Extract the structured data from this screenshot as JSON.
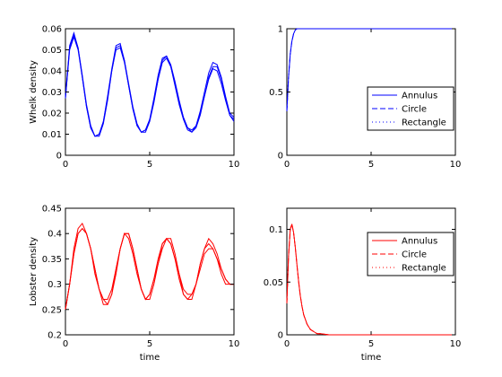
{
  "chart_data": [
    {
      "type": "line",
      "ylabel": "Whelk density",
      "xlabel": "",
      "xlim": [
        0,
        10
      ],
      "ylim": [
        0,
        0.06
      ],
      "xticks": [
        "0",
        "5",
        "10"
      ],
      "yticks": [
        "0",
        "0.01",
        "0.02",
        "0.03",
        "0.04",
        "0.05",
        "0.06"
      ],
      "color": "#0000ff",
      "legend": false,
      "series": [
        {
          "x": [
            0,
            0.25,
            0.5,
            0.75,
            1.0,
            1.25,
            1.5,
            1.75,
            2.0,
            2.25,
            2.5,
            2.75,
            3.0,
            3.25,
            3.5,
            3.75,
            4.0,
            4.25,
            4.5,
            4.75,
            5.0,
            5.25,
            5.5,
            5.75,
            6.0,
            6.25,
            6.5,
            6.75,
            7.0,
            7.25,
            7.5,
            7.75,
            8.0,
            8.25,
            8.5,
            8.75,
            9.0,
            9.25,
            9.5,
            9.75,
            10.0
          ],
          "y": [
            0.027,
            0.05,
            0.056,
            0.05,
            0.037,
            0.023,
            0.013,
            0.009,
            0.01,
            0.016,
            0.027,
            0.04,
            0.05,
            0.051,
            0.044,
            0.033,
            0.022,
            0.014,
            0.011,
            0.012,
            0.017,
            0.026,
            0.036,
            0.044,
            0.046,
            0.042,
            0.034,
            0.025,
            0.018,
            0.013,
            0.012,
            0.014,
            0.02,
            0.028,
            0.036,
            0.041,
            0.04,
            0.034,
            0.026,
            0.019,
            0.017
          ]
        },
        {
          "x": [
            0,
            0.25,
            0.5,
            0.75,
            1.0,
            1.25,
            1.5,
            1.75,
            2.0,
            2.25,
            2.5,
            2.75,
            3.0,
            3.25,
            3.5,
            3.75,
            4.0,
            4.25,
            4.5,
            4.75,
            5.0,
            5.25,
            5.5,
            5.75,
            6.0,
            6.25,
            6.5,
            6.75,
            7.0,
            7.25,
            7.5,
            7.75,
            8.0,
            8.25,
            8.5,
            8.75,
            9.0,
            9.25,
            9.5,
            9.75,
            10.0
          ],
          "y": [
            0.027,
            0.051,
            0.057,
            0.051,
            0.038,
            0.024,
            0.014,
            0.009,
            0.009,
            0.015,
            0.026,
            0.04,
            0.051,
            0.052,
            0.045,
            0.034,
            0.023,
            0.015,
            0.011,
            0.011,
            0.016,
            0.025,
            0.036,
            0.045,
            0.047,
            0.043,
            0.035,
            0.026,
            0.018,
            0.013,
            0.011,
            0.013,
            0.019,
            0.028,
            0.037,
            0.042,
            0.042,
            0.036,
            0.027,
            0.019,
            0.016
          ]
        },
        {
          "x": [
            0,
            0.25,
            0.5,
            0.75,
            1.0,
            1.25,
            1.5,
            1.75,
            2.0,
            2.25,
            2.5,
            2.75,
            3.0,
            3.25,
            3.5,
            3.75,
            4.0,
            4.25,
            4.5,
            4.75,
            5.0,
            5.25,
            5.5,
            5.75,
            6.0,
            6.25,
            6.5,
            6.75,
            7.0,
            7.25,
            7.5,
            7.75,
            8.0,
            8.25,
            8.5,
            8.75,
            9.0,
            9.25,
            9.5,
            9.75,
            10.0
          ],
          "y": [
            0.028,
            0.052,
            0.058,
            0.051,
            0.037,
            0.023,
            0.013,
            0.009,
            0.01,
            0.016,
            0.028,
            0.041,
            0.052,
            0.053,
            0.045,
            0.033,
            0.022,
            0.014,
            0.011,
            0.012,
            0.017,
            0.027,
            0.038,
            0.046,
            0.047,
            0.042,
            0.033,
            0.024,
            0.017,
            0.012,
            0.011,
            0.014,
            0.021,
            0.03,
            0.039,
            0.044,
            0.043,
            0.037,
            0.028,
            0.02,
            0.018
          ]
        }
      ]
    },
    {
      "type": "line",
      "ylabel": "",
      "xlabel": "",
      "xlim": [
        0,
        10
      ],
      "ylim": [
        0,
        1
      ],
      "xticks": [
        "0",
        "5",
        "10"
      ],
      "yticks": [
        "0",
        "0.5",
        "1"
      ],
      "color": "#0000ff",
      "legend": true,
      "legend_position": "center-right",
      "series": [
        {
          "name": "Annulus",
          "style": "solid",
          "x": [
            0,
            0.1,
            0.2,
            0.3,
            0.4,
            0.5,
            0.6,
            0.7,
            0.8,
            1.0,
            1.5,
            2,
            3,
            4,
            5,
            6,
            7,
            8,
            9,
            10
          ],
          "y": [
            0.35,
            0.62,
            0.8,
            0.9,
            0.96,
            0.99,
            1.0,
            1.01,
            1.01,
            1.0,
            1.0,
            1.0,
            1.0,
            1.0,
            1.0,
            1.0,
            1.0,
            1.0,
            1.0,
            1.0
          ]
        },
        {
          "name": "Circle",
          "style": "dashed",
          "x": [
            0,
            0.1,
            0.2,
            0.3,
            0.4,
            0.5,
            0.6,
            0.7,
            0.8,
            1.0,
            1.5,
            2,
            3,
            4,
            5,
            6,
            7,
            8,
            9,
            10
          ],
          "y": [
            0.35,
            0.62,
            0.8,
            0.9,
            0.96,
            0.99,
            1.0,
            1.01,
            1.01,
            1.0,
            1.0,
            1.0,
            1.0,
            1.0,
            1.0,
            1.0,
            1.0,
            1.0,
            1.0,
            1.0
          ]
        },
        {
          "name": "Rectangle",
          "style": "dotted",
          "x": [
            0,
            0.1,
            0.2,
            0.3,
            0.4,
            0.5,
            0.6,
            0.7,
            0.8,
            1.0,
            1.5,
            2,
            3,
            4,
            5,
            6,
            7,
            8,
            9,
            10
          ],
          "y": [
            0.35,
            0.62,
            0.8,
            0.9,
            0.96,
            0.99,
            1.0,
            1.01,
            1.01,
            1.0,
            1.0,
            1.0,
            1.0,
            1.0,
            1.0,
            1.0,
            1.0,
            1.0,
            1.0,
            1.0
          ]
        }
      ]
    },
    {
      "type": "line",
      "ylabel": "Lobster density",
      "xlabel": "time",
      "xlim": [
        0,
        10
      ],
      "ylim": [
        0.2,
        0.45
      ],
      "xticks": [
        "0",
        "5",
        "10"
      ],
      "yticks": [
        "0.2",
        "0.25",
        "0.3",
        "0.35",
        "0.4",
        "0.45"
      ],
      "color": "#ff0000",
      "legend": false,
      "series": [
        {
          "x": [
            0,
            0.25,
            0.5,
            0.75,
            1.0,
            1.25,
            1.5,
            1.75,
            2.0,
            2.25,
            2.5,
            2.75,
            3.0,
            3.25,
            3.5,
            3.75,
            4.0,
            4.25,
            4.5,
            4.75,
            5.0,
            5.25,
            5.5,
            5.75,
            6.0,
            6.25,
            6.5,
            6.75,
            7.0,
            7.25,
            7.5,
            7.75,
            8.0,
            8.25,
            8.5,
            8.75,
            9.0,
            9.25,
            9.5,
            9.75,
            10.0
          ],
          "y": [
            0.25,
            0.3,
            0.36,
            0.4,
            0.41,
            0.4,
            0.37,
            0.33,
            0.29,
            0.27,
            0.27,
            0.29,
            0.33,
            0.37,
            0.4,
            0.39,
            0.36,
            0.32,
            0.29,
            0.27,
            0.28,
            0.31,
            0.34,
            0.37,
            0.39,
            0.38,
            0.35,
            0.32,
            0.29,
            0.28,
            0.28,
            0.3,
            0.33,
            0.36,
            0.37,
            0.37,
            0.35,
            0.33,
            0.31,
            0.3,
            0.3
          ]
        },
        {
          "x": [
            0,
            0.25,
            0.5,
            0.75,
            1.0,
            1.25,
            1.5,
            1.75,
            2.0,
            2.25,
            2.5,
            2.75,
            3.0,
            3.25,
            3.5,
            3.75,
            4.0,
            4.25,
            4.5,
            4.75,
            5.0,
            5.25,
            5.5,
            5.75,
            6.0,
            6.25,
            6.5,
            6.75,
            7.0,
            7.25,
            7.5,
            7.75,
            8.0,
            8.25,
            8.5,
            8.75,
            9.0,
            9.25,
            9.5,
            9.75,
            10.0
          ],
          "y": [
            0.25,
            0.3,
            0.36,
            0.4,
            0.41,
            0.4,
            0.37,
            0.33,
            0.29,
            0.27,
            0.26,
            0.28,
            0.33,
            0.37,
            0.4,
            0.4,
            0.37,
            0.33,
            0.29,
            0.27,
            0.28,
            0.31,
            0.35,
            0.38,
            0.39,
            0.38,
            0.35,
            0.31,
            0.28,
            0.27,
            0.28,
            0.3,
            0.34,
            0.37,
            0.38,
            0.37,
            0.35,
            0.32,
            0.3,
            0.3,
            0.3
          ]
        },
        {
          "x": [
            0,
            0.25,
            0.5,
            0.75,
            1.0,
            1.25,
            1.5,
            1.75,
            2.0,
            2.25,
            2.5,
            2.75,
            3.0,
            3.25,
            3.5,
            3.75,
            4.0,
            4.25,
            4.5,
            4.75,
            5.0,
            5.25,
            5.5,
            5.75,
            6.0,
            6.25,
            6.5,
            6.75,
            7.0,
            7.25,
            7.5,
            7.75,
            8.0,
            8.25,
            8.5,
            8.75,
            9.0,
            9.25,
            9.5,
            9.75,
            10.0
          ],
          "y": [
            0.25,
            0.3,
            0.37,
            0.41,
            0.42,
            0.4,
            0.37,
            0.32,
            0.29,
            0.26,
            0.26,
            0.28,
            0.32,
            0.37,
            0.4,
            0.4,
            0.37,
            0.33,
            0.29,
            0.27,
            0.27,
            0.3,
            0.34,
            0.38,
            0.39,
            0.39,
            0.36,
            0.32,
            0.28,
            0.27,
            0.27,
            0.3,
            0.34,
            0.37,
            0.39,
            0.38,
            0.36,
            0.33,
            0.31,
            0.3,
            0.3
          ]
        }
      ]
    },
    {
      "type": "line",
      "ylabel": "",
      "xlabel": "time",
      "xlim": [
        0,
        10
      ],
      "ylim": [
        0,
        0.12
      ],
      "xticks": [
        "0",
        "5",
        "10"
      ],
      "yticks": [
        "0",
        "0.05",
        "0.1"
      ],
      "color": "#ff0000",
      "legend": true,
      "legend_position": "top-right",
      "series": [
        {
          "name": "Annulus",
          "style": "solid",
          "x": [
            0,
            0.1,
            0.2,
            0.3,
            0.4,
            0.5,
            0.6,
            0.7,
            0.8,
            0.9,
            1.0,
            1.2,
            1.4,
            1.6,
            1.8,
            2.0,
            2.5,
            3,
            4,
            5,
            6,
            7,
            8,
            9,
            10
          ],
          "y": [
            0.03,
            0.075,
            0.1,
            0.105,
            0.097,
            0.083,
            0.066,
            0.05,
            0.037,
            0.027,
            0.019,
            0.01,
            0.005,
            0.003,
            0.001,
            0.001,
            0.0,
            0.0,
            0.0,
            0.0,
            0.0,
            0.0,
            0.0,
            0.0,
            0.0
          ]
        },
        {
          "name": "Circle",
          "style": "dashed",
          "x": [
            0,
            0.1,
            0.2,
            0.3,
            0.4,
            0.5,
            0.6,
            0.7,
            0.8,
            0.9,
            1.0,
            1.2,
            1.4,
            1.6,
            1.8,
            2.0,
            2.5,
            3,
            4,
            5,
            6,
            7,
            8,
            9,
            10
          ],
          "y": [
            0.03,
            0.075,
            0.1,
            0.105,
            0.097,
            0.083,
            0.066,
            0.05,
            0.037,
            0.027,
            0.019,
            0.01,
            0.005,
            0.003,
            0.001,
            0.001,
            0.0,
            0.0,
            0.0,
            0.0,
            0.0,
            0.0,
            0.0,
            0.0,
            0.0
          ]
        },
        {
          "name": "Rectangle",
          "style": "dotted",
          "x": [
            0,
            0.1,
            0.2,
            0.3,
            0.4,
            0.5,
            0.6,
            0.7,
            0.8,
            0.9,
            1.0,
            1.2,
            1.4,
            1.6,
            1.8,
            2.0,
            2.5,
            3,
            4,
            5,
            6,
            7,
            8,
            9,
            10
          ],
          "y": [
            0.03,
            0.075,
            0.1,
            0.105,
            0.097,
            0.083,
            0.066,
            0.05,
            0.037,
            0.027,
            0.019,
            0.01,
            0.005,
            0.003,
            0.001,
            0.001,
            0.0,
            0.0,
            0.0,
            0.0,
            0.0,
            0.0,
            0.0,
            0.0,
            0.0
          ]
        }
      ]
    }
  ]
}
